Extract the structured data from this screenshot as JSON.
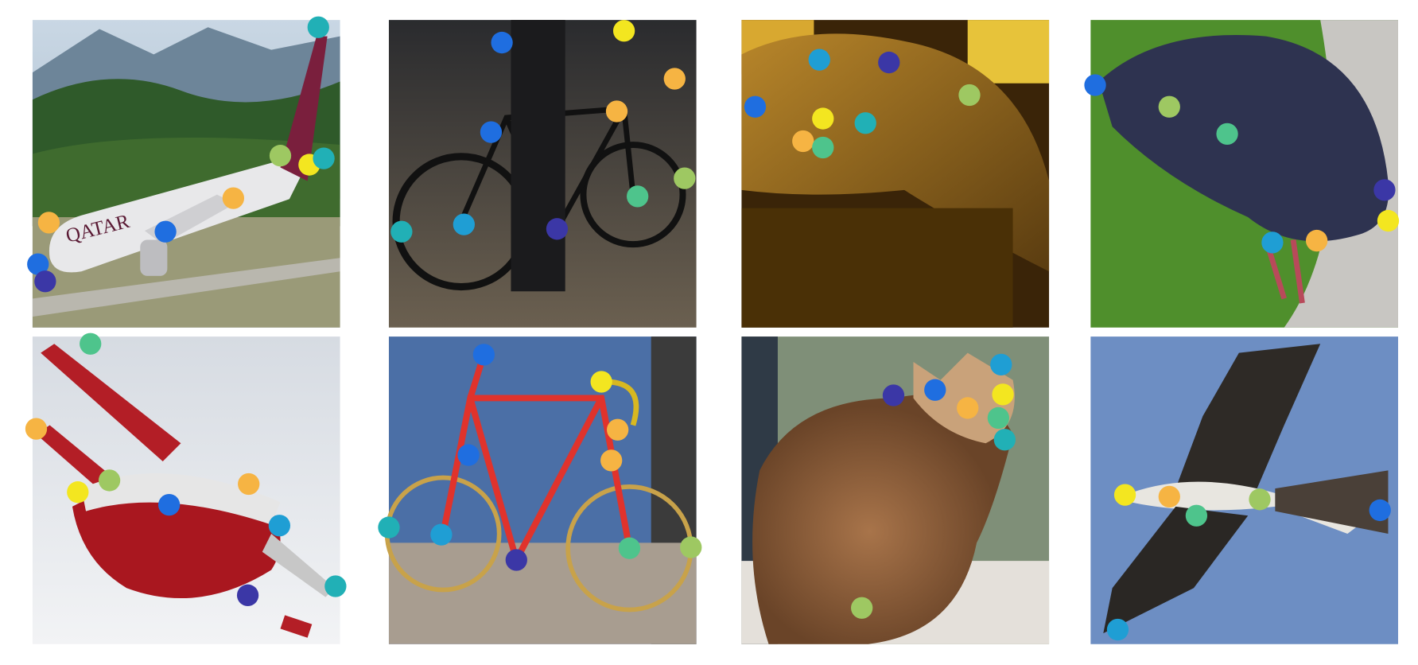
{
  "panels": [
    {
      "label": "QATAR"
    }
  ]
}
